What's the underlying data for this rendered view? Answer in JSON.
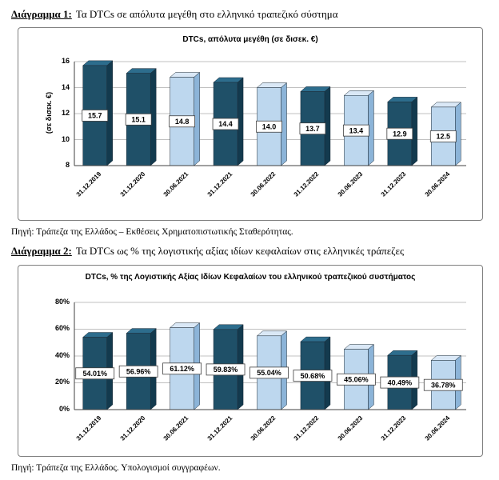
{
  "page": {
    "heading1_label": "Διάγραμμα 1:",
    "heading1_text": "Τα DTCs σε απόλυτα μεγέθη στο ελληνικό τραπεζικό σύστημα",
    "source1": "Πηγή: Τράπεζα της Ελλάδος – Εκθέσεις Χρηματοπιστωτικής Σταθερότητας.",
    "heading2_label": "Διάγραμμα 2:",
    "heading2_text": "Τα DTCs ως % της λογιστικής αξίας ιδίων κεφαλαίων στις ελληνικές τράπεζες",
    "source2": "Πηγή: Τράπεζα της Ελλάδος. Υπολογισμοί συγγραφέων."
  },
  "palette": {
    "dark": {
      "front": "#1f5068",
      "side": "#133a4e",
      "top": "#2d6d8d"
    },
    "light": {
      "front": "#bdd7ee",
      "side": "#8cb4d8",
      "top": "#dae8f6"
    },
    "gridline": "#c0c0c0",
    "axis": "#404040",
    "label_box_border": "#404040"
  },
  "chart_data": [
    {
      "type": "bar",
      "title": "DTCs, απόλυτα μεγέθη (σε δισεκ. €)",
      "ylabel": "(σε  δισεκ.  €)",
      "xlabel": "",
      "categories": [
        "31.12.2019",
        "31.12.2020",
        "30.06.2021",
        "31.12.2021",
        "30.06.2022",
        "31.12.2022",
        "30.06.2023",
        "31.12.2023",
        "30.06.2024"
      ],
      "values": [
        15.7,
        15.1,
        14.8,
        14.4,
        14.0,
        13.7,
        13.4,
        12.9,
        12.5
      ],
      "labels": [
        "15.7",
        "15.1",
        "14.8",
        "14.4",
        "14.0",
        "13.7",
        "13.4",
        "12.9",
        "12.5"
      ],
      "bar_styles": [
        "dark",
        "dark",
        "light",
        "dark",
        "light",
        "dark",
        "light",
        "dark",
        "light"
      ],
      "ylim": [
        8,
        16
      ],
      "yticks": [
        8,
        10,
        12,
        14,
        16
      ],
      "ytick_labels": [
        "8",
        "10",
        "12",
        "14",
        "16"
      ],
      "grid": true,
      "legend": "none"
    },
    {
      "type": "bar",
      "title": "DTCs, % της Λογιστικής Αξίας Ιδίων Κεφαλαίων του ελληνικού τραπεζικού συστήματος",
      "ylabel": "",
      "xlabel": "",
      "categories": [
        "31.12.2019",
        "31.12.2020",
        "30.06.2021",
        "31.12.2021",
        "30.06.2022",
        "31.12.2022",
        "30.06.2023",
        "31.12.2023",
        "30.06.2024"
      ],
      "values": [
        54.01,
        56.96,
        61.12,
        59.83,
        55.04,
        50.68,
        45.06,
        40.49,
        36.78
      ],
      "labels": [
        "54.01%",
        "56.96%",
        "61.12%",
        "59.83%",
        "55.04%",
        "50.68%",
        "45.06%",
        "40.49%",
        "36.78%"
      ],
      "bar_styles": [
        "dark",
        "dark",
        "light",
        "dark",
        "light",
        "dark",
        "light",
        "dark",
        "light"
      ],
      "ylim": [
        0,
        80
      ],
      "yticks": [
        0,
        20,
        40,
        60,
        80
      ],
      "ytick_labels": [
        "0%",
        "20%",
        "40%",
        "60%",
        "80%"
      ],
      "grid": true,
      "legend": "none"
    }
  ]
}
